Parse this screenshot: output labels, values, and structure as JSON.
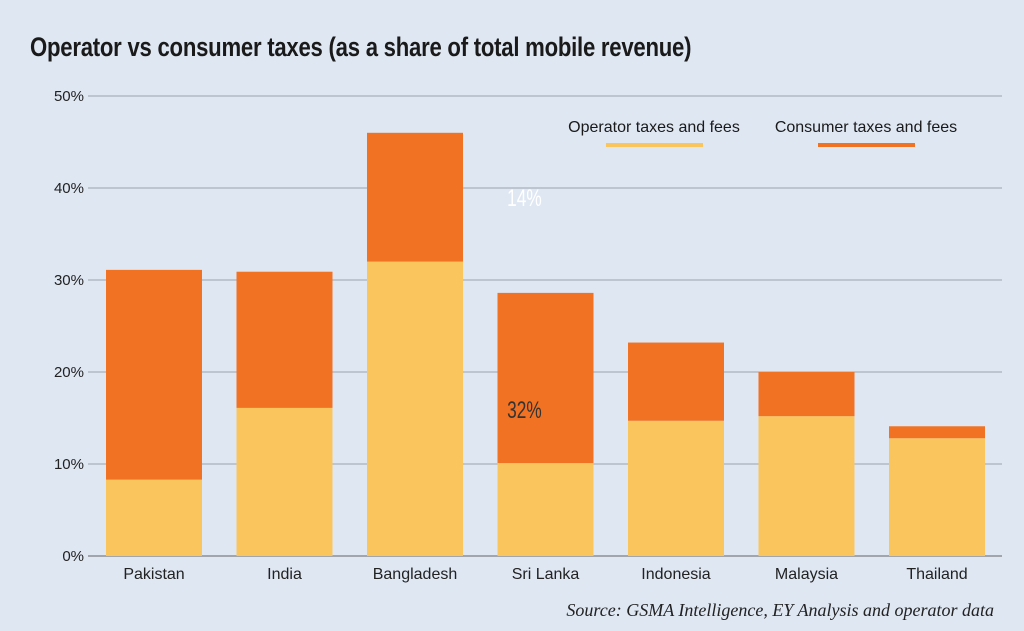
{
  "chart_data": {
    "type": "bar",
    "stacked": true,
    "title": "Operator vs consumer taxes (as a share of total mobile revenue)",
    "source": "Source: GSMA Intelligence, EY Analysis and operator data",
    "categories": [
      "Pakistan",
      "India",
      "Bangladesh",
      "Sri Lanka",
      "Indonesia",
      "Malaysia",
      "Thailand"
    ],
    "series": [
      {
        "name": "Operator taxes and fees",
        "color": "#fbc55d",
        "values": [
          8.3,
          16.1,
          32,
          10.1,
          14.7,
          15.2,
          12.8
        ]
      },
      {
        "name": "Consumer taxes and fees",
        "color": "#f07222",
        "values": [
          22.8,
          14.8,
          14,
          18.5,
          8.5,
          4.8,
          1.3
        ]
      }
    ],
    "data_labels": [
      {
        "category": "Bangladesh",
        "series": 0,
        "text": "32%"
      },
      {
        "category": "Bangladesh",
        "series": 1,
        "text": "14%"
      }
    ],
    "ylim": [
      0,
      50
    ],
    "yticks": [
      "0%",
      "10%",
      "20%",
      "30%",
      "40%",
      "50%"
    ],
    "grid": true,
    "legend_position": "top-right",
    "background": "#dfe7f3"
  }
}
